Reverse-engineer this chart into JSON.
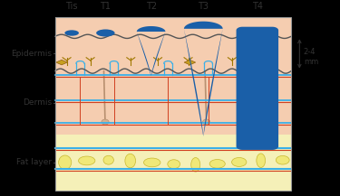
{
  "stage_labels": [
    "Tis",
    "T1",
    "T2",
    "T3",
    "T4"
  ],
  "layer_labels": [
    "Epidermis",
    "Dermis",
    "Fat layer"
  ],
  "annotation_line1": "2-4",
  "annotation_line2": "mm",
  "bg_skin_color": "#f5cdb0",
  "bg_fat_color": "#f5f0b8",
  "blue_tumor_color": "#1a5fa8",
  "dermis_blue_line": "#3ab0e8",
  "blood_vessel_red": "#d04020",
  "nerve_yellow": "#c8a020",
  "fig_bg": "#000000",
  "diagram_bg": "#f5cdb0",
  "label_color": "#333333",
  "border_color": "#999999",
  "wavy_color": "#555555",
  "L": 0.155,
  "R": 0.855,
  "T": 0.93,
  "B": 0.03
}
